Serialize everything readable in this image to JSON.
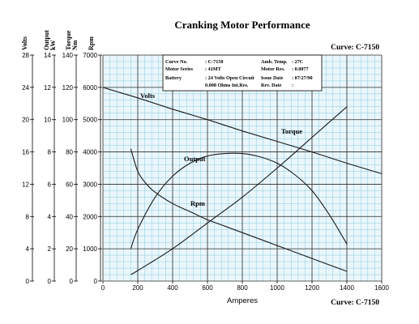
{
  "chart_data": {
    "type": "line",
    "title": "Cranking Motor Performance",
    "curve_label_top": "Curve: C-7150",
    "curve_label_bottom": "Curve: C-7150",
    "xlabel": "Amperes",
    "xlim": [
      0,
      1600
    ],
    "x_ticks": [
      0,
      200,
      400,
      600,
      800,
      1000,
      1200,
      1400,
      1600
    ],
    "axes": [
      {
        "label": "Volts",
        "unit": "",
        "min": 0,
        "max": 28,
        "ticks": [
          0,
          4,
          8,
          12,
          16,
          20,
          24,
          28
        ]
      },
      {
        "label": "Output",
        "unit": "kW",
        "min": 0,
        "max": 14,
        "ticks": [
          0,
          2,
          4,
          6,
          8,
          10,
          12,
          14
        ]
      },
      {
        "label": "Torque",
        "unit": "Nm",
        "min": 0,
        "max": 140,
        "ticks": [
          0,
          20,
          40,
          60,
          80,
          100,
          120,
          140
        ]
      },
      {
        "label": "Rpm",
        "unit": "",
        "min": 0,
        "max": 7000,
        "ticks": [
          0,
          1000,
          2000,
          3000,
          4000,
          5000,
          6000,
          7000
        ]
      }
    ],
    "grid": true,
    "series": [
      {
        "name": "Volts",
        "axis": "Volts",
        "x": [
          0,
          200,
          400,
          600,
          800,
          1000,
          1200,
          1400,
          1600
        ],
        "y": [
          24,
          22.7,
          21.3,
          20,
          18.6,
          17.3,
          16,
          14.6,
          13.3
        ]
      },
      {
        "name": "Torque",
        "axis": "Torque",
        "x": [
          160,
          200,
          400,
          600,
          800,
          1000,
          1200,
          1400
        ],
        "y": [
          4,
          6.5,
          20,
          36,
          52,
          70,
          89,
          108
        ]
      },
      {
        "name": "Output",
        "axis": "Output",
        "x": [
          160,
          200,
          300,
          400,
          500,
          600,
          700,
          800,
          900,
          1000,
          1100,
          1200,
          1300,
          1400
        ],
        "y": [
          2,
          3.2,
          5.2,
          6.5,
          7.3,
          7.75,
          7.9,
          7.9,
          7.7,
          7.3,
          6.6,
          5.6,
          4.1,
          2.3
        ]
      },
      {
        "name": "Rpm",
        "axis": "Rpm",
        "x": [
          160,
          200,
          250,
          300,
          400,
          500,
          600,
          700,
          800,
          900,
          1000,
          1100,
          1200,
          1300,
          1400
        ],
        "y": [
          4100,
          3400,
          3000,
          2750,
          2400,
          2150,
          1900,
          1700,
          1500,
          1300,
          1100,
          900,
          700,
          500,
          300
        ]
      }
    ],
    "info_box": {
      "rows": [
        {
          "label": "Curve No.",
          "value": ": C-7150",
          "label2": "Amb. Temp.",
          "value2": ": 27C"
        },
        {
          "label": "Motor Series",
          "value": ": 41MT",
          "label2": "Motor Res.",
          "value2": ": 0.0077"
        },
        {
          "label": "Battery",
          "value": ": 24 Volts Open Circuit",
          "label2": "Issue Date",
          "value2": ": 07/27/90"
        },
        {
          "label": "",
          "value": "0.008 Ohms Int.Res.",
          "label2": "Rev. Date",
          "value2": ":"
        }
      ]
    }
  }
}
